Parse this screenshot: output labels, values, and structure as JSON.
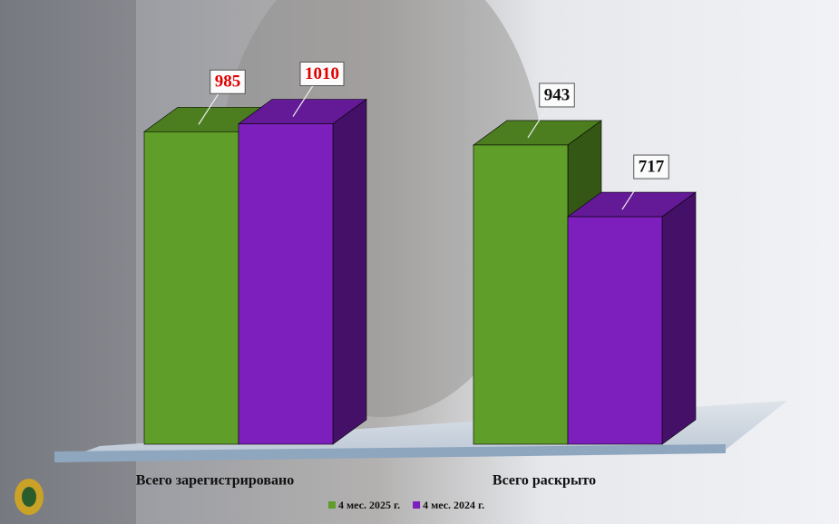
{
  "chart_data": {
    "type": "bar",
    "categories": [
      "Всего зарегистрировано",
      "Всего раскрыто"
    ],
    "series": [
      {
        "name": "4 мес. 2025 г.",
        "color": "#5f9e28",
        "values": [
          985,
          943
        ]
      },
      {
        "name": "4 мес. 2024 г.",
        "color": "#7d1fbd",
        "values": [
          1010,
          717
        ]
      }
    ],
    "label_colors": [
      "#e00000",
      "#111111"
    ],
    "legend": "bottom"
  }
}
